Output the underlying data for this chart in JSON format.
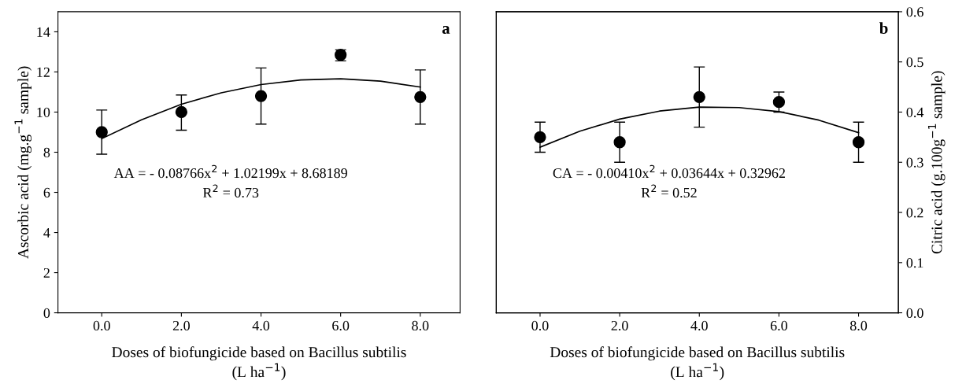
{
  "chart_data": [
    {
      "type": "scatter",
      "xlabel": "Doses of biofungicide based on Bacillus subtilis\n(L ha$^{−1}$)",
      "ylabel": "Ascorbic acid (mg.g$^{−1}$ sample)",
      "xlim": [
        -1.1,
        9.0
      ],
      "xticks": [
        {
          "value": 0,
          "label": "0.0"
        },
        {
          "value": 2,
          "label": "2.0"
        },
        {
          "value": 4,
          "label": "4.0"
        },
        {
          "value": 6,
          "label": "6.0"
        },
        {
          "value": 8,
          "label": "8.0"
        }
      ],
      "ylim": [
        0,
        15
      ],
      "yticks": [
        0,
        2,
        4,
        6,
        8,
        10,
        12,
        14
      ],
      "series": [
        {
          "marker": "circle",
          "color": "#000000",
          "x": [
            0,
            2,
            4,
            6,
            8
          ],
          "values": [
            9.0,
            10.0,
            10.8,
            12.85,
            10.75
          ],
          "errors": [
            [
              7.9,
              10.1
            ],
            [
              9.1,
              10.85
            ],
            [
              9.4,
              12.2
            ],
            [
              12.55,
              13.1
            ],
            [
              9.4,
              12.1
            ]
          ]
        },
        {
          "type": "line",
          "marker": "none",
          "color": "#000000",
          "x": [
            0,
            1,
            2,
            3,
            4,
            5,
            6,
            7,
            8
          ],
          "values": [
            8.68,
            9.62,
            10.39,
            10.96,
            11.37,
            11.6,
            11.66,
            11.54,
            11.25
          ]
        }
      ],
      "annotations": [
        "a",
        "AA = - 0.08766x$^{2}$ + 1.02199x + 8.68189",
        "R$^{2}$ = 0.73"
      ]
    },
    {
      "type": "scatter",
      "xlabel": "Doses of biofungicide based on Bacillus subtilis\n(L ha$^{−1}$)",
      "y2label": "Citric acid (g.100g$^{−1}$ sample)",
      "xlim": [
        -1.1,
        9.0
      ],
      "xticks": [
        {
          "value": 0,
          "label": "0.0"
        },
        {
          "value": 2,
          "label": "2.0"
        },
        {
          "value": 4,
          "label": "4.0"
        },
        {
          "value": 6,
          "label": "6.0"
        },
        {
          "value": 8,
          "label": "8.0"
        }
      ],
      "y2lim": [
        0,
        0.6
      ],
      "y2ticks": [
        {
          "value": 0,
          "label": "0.0"
        },
        0.1,
        0.2,
        0.3,
        0.4,
        0.5,
        0.6
      ],
      "series": [
        {
          "marker": "circle",
          "axis": "y2",
          "color": "#000000",
          "x": [
            0,
            2,
            4,
            6,
            8
          ],
          "values": [
            0.35,
            0.34,
            0.43,
            0.42,
            0.34
          ],
          "errors": [
            [
              0.32,
              0.38
            ],
            [
              0.3,
              0.38
            ],
            [
              0.37,
              0.49
            ],
            [
              0.4,
              0.44
            ],
            [
              0.3,
              0.38
            ]
          ]
        },
        {
          "type": "line",
          "marker": "none",
          "axis": "y2",
          "color": "#000000",
          "x": [
            0,
            1,
            2,
            3,
            4,
            5,
            6,
            7,
            8
          ],
          "values": [
            0.33,
            0.362,
            0.386,
            0.402,
            0.41,
            0.409,
            0.401,
            0.384,
            0.359
          ]
        }
      ],
      "annotations": [
        "b",
        "CA = - 0.00410x$^{2}$ + 0.03644x + 0.32962",
        "R$^{2}$ = 0.52"
      ]
    }
  ]
}
